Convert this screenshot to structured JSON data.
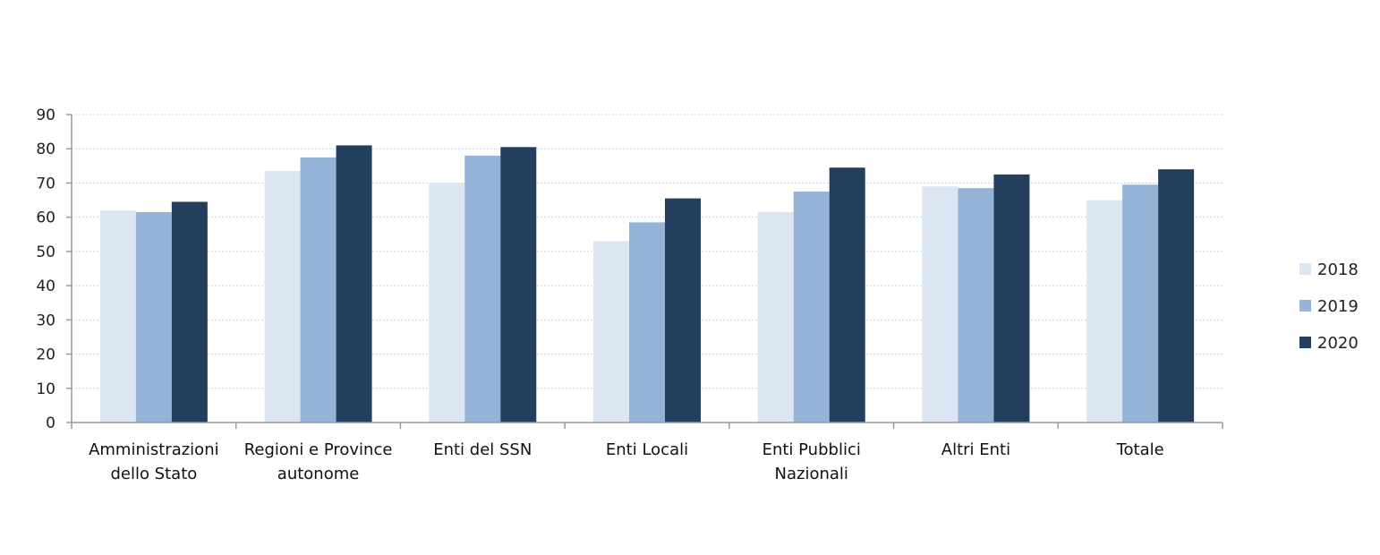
{
  "chart_data": {
    "type": "bar",
    "title": "",
    "xlabel": "",
    "ylabel": "",
    "ylim": [
      0,
      90
    ],
    "yticks": [
      0,
      10,
      20,
      30,
      40,
      50,
      60,
      70,
      80,
      90
    ],
    "grid": true,
    "legend_position": "right",
    "categories": [
      [
        "Amministrazioni",
        "dello Stato"
      ],
      [
        "Regioni e Province",
        "autonome"
      ],
      [
        "Enti del SSN"
      ],
      [
        "Enti Locali"
      ],
      [
        "Enti Pubblici",
        "Nazionali"
      ],
      [
        "Altri Enti"
      ],
      [
        "Totale"
      ]
    ],
    "series": [
      {
        "name": "2018",
        "color": "#dce6f2",
        "values": [
          62,
          73.5,
          70,
          53,
          61.5,
          69,
          65
        ]
      },
      {
        "name": "2019",
        "color": "#95b3d7",
        "values": [
          61.5,
          77.5,
          78,
          58.5,
          67.5,
          68.5,
          69.5
        ]
      },
      {
        "name": "2020",
        "color": "#243e5e",
        "values": [
          64.5,
          81,
          80.5,
          65.5,
          74.5,
          72.5,
          74
        ]
      }
    ]
  }
}
